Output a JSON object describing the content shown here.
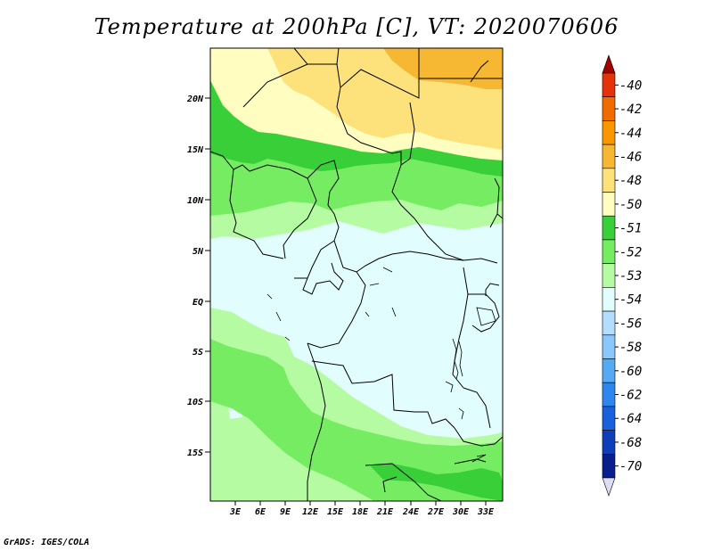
{
  "title": "Temperature at 200hPa [C], VT: 2020070606",
  "credit": "GrADS: IGES/COLA",
  "map": {
    "lat_labels": [
      "20N",
      "15N",
      "10N",
      "5N",
      "EQ",
      "5S",
      "10S",
      "15S"
    ],
    "lon_labels": [
      "3E",
      "6E",
      "9E",
      "12E",
      "15E",
      "18E",
      "21E",
      "24E",
      "27E",
      "30E",
      "33E"
    ]
  },
  "colorbar": {
    "labels": [
      "-40",
      "-42",
      "-44",
      "-46",
      "-48",
      "-50",
      "-51",
      "-52",
      "-53",
      "-54",
      "-56",
      "-58",
      "-60",
      "-62",
      "-64",
      "-68",
      "-70"
    ],
    "colors": [
      "#a00000",
      "#e6320a",
      "#f06c00",
      "#fa9600",
      "#f6b833",
      "#fde27c",
      "#fffdc0",
      "#38cf38",
      "#75ec62",
      "#b5fba2",
      "#e1fdfd",
      "#b3ddfc",
      "#8cc7fb",
      "#55aaf4",
      "#2f87ee",
      "#1960dd",
      "#0e3fb8",
      "#081e8c",
      "#05105d",
      "#dcdcf3"
    ]
  }
}
